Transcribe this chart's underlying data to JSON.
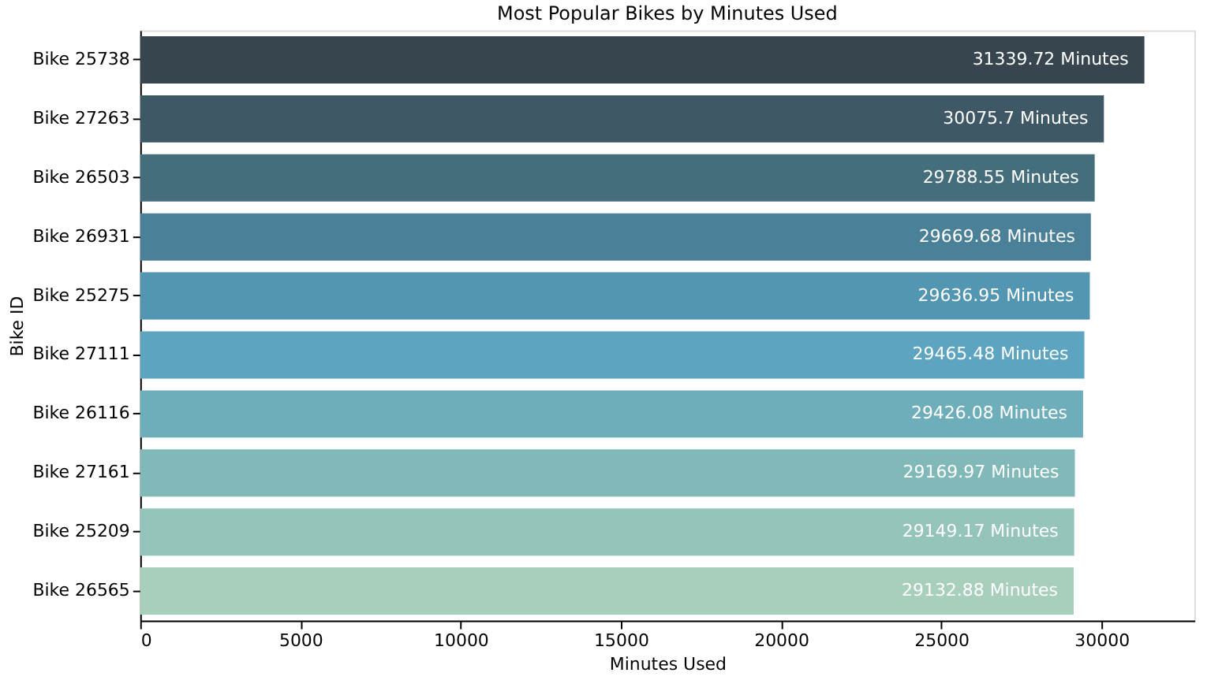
{
  "chart_data": {
    "type": "bar",
    "orientation": "horizontal",
    "title": "Most Popular Bikes by Minutes Used",
    "xlabel": "Minutes Used",
    "ylabel": "Bike ID",
    "categories": [
      "Bike 25738",
      "Bike 27263",
      "Bike 26503",
      "Bike 26931",
      "Bike 25275",
      "Bike 27111",
      "Bike 26116",
      "Bike 27161",
      "Bike 25209",
      "Bike 26565"
    ],
    "values": [
      31339.72,
      30075.7,
      29788.55,
      29669.68,
      29636.95,
      29465.48,
      29426.08,
      29169.97,
      29149.17,
      29132.88
    ],
    "value_labels": [
      "31339.72 Minutes",
      "30075.7 Minutes",
      "29788.55 Minutes",
      "29669.68 Minutes",
      "29636.95 Minutes",
      "29465.48 Minutes",
      "29426.08 Minutes",
      "29169.97 Minutes",
      "29149.17 Minutes",
      "29132.88 Minutes"
    ],
    "colors": [
      "#37464e",
      "#3f5866",
      "#456e7d",
      "#4a8198",
      "#5296b2",
      "#5ca4bf",
      "#6eaeba",
      "#81b9b8",
      "#94c4ba",
      "#a7cfbc"
    ],
    "xlim": [
      0,
      32900
    ],
    "xticks": [
      0,
      5000,
      10000,
      15000,
      20000,
      25000,
      30000
    ],
    "grid": false
  }
}
